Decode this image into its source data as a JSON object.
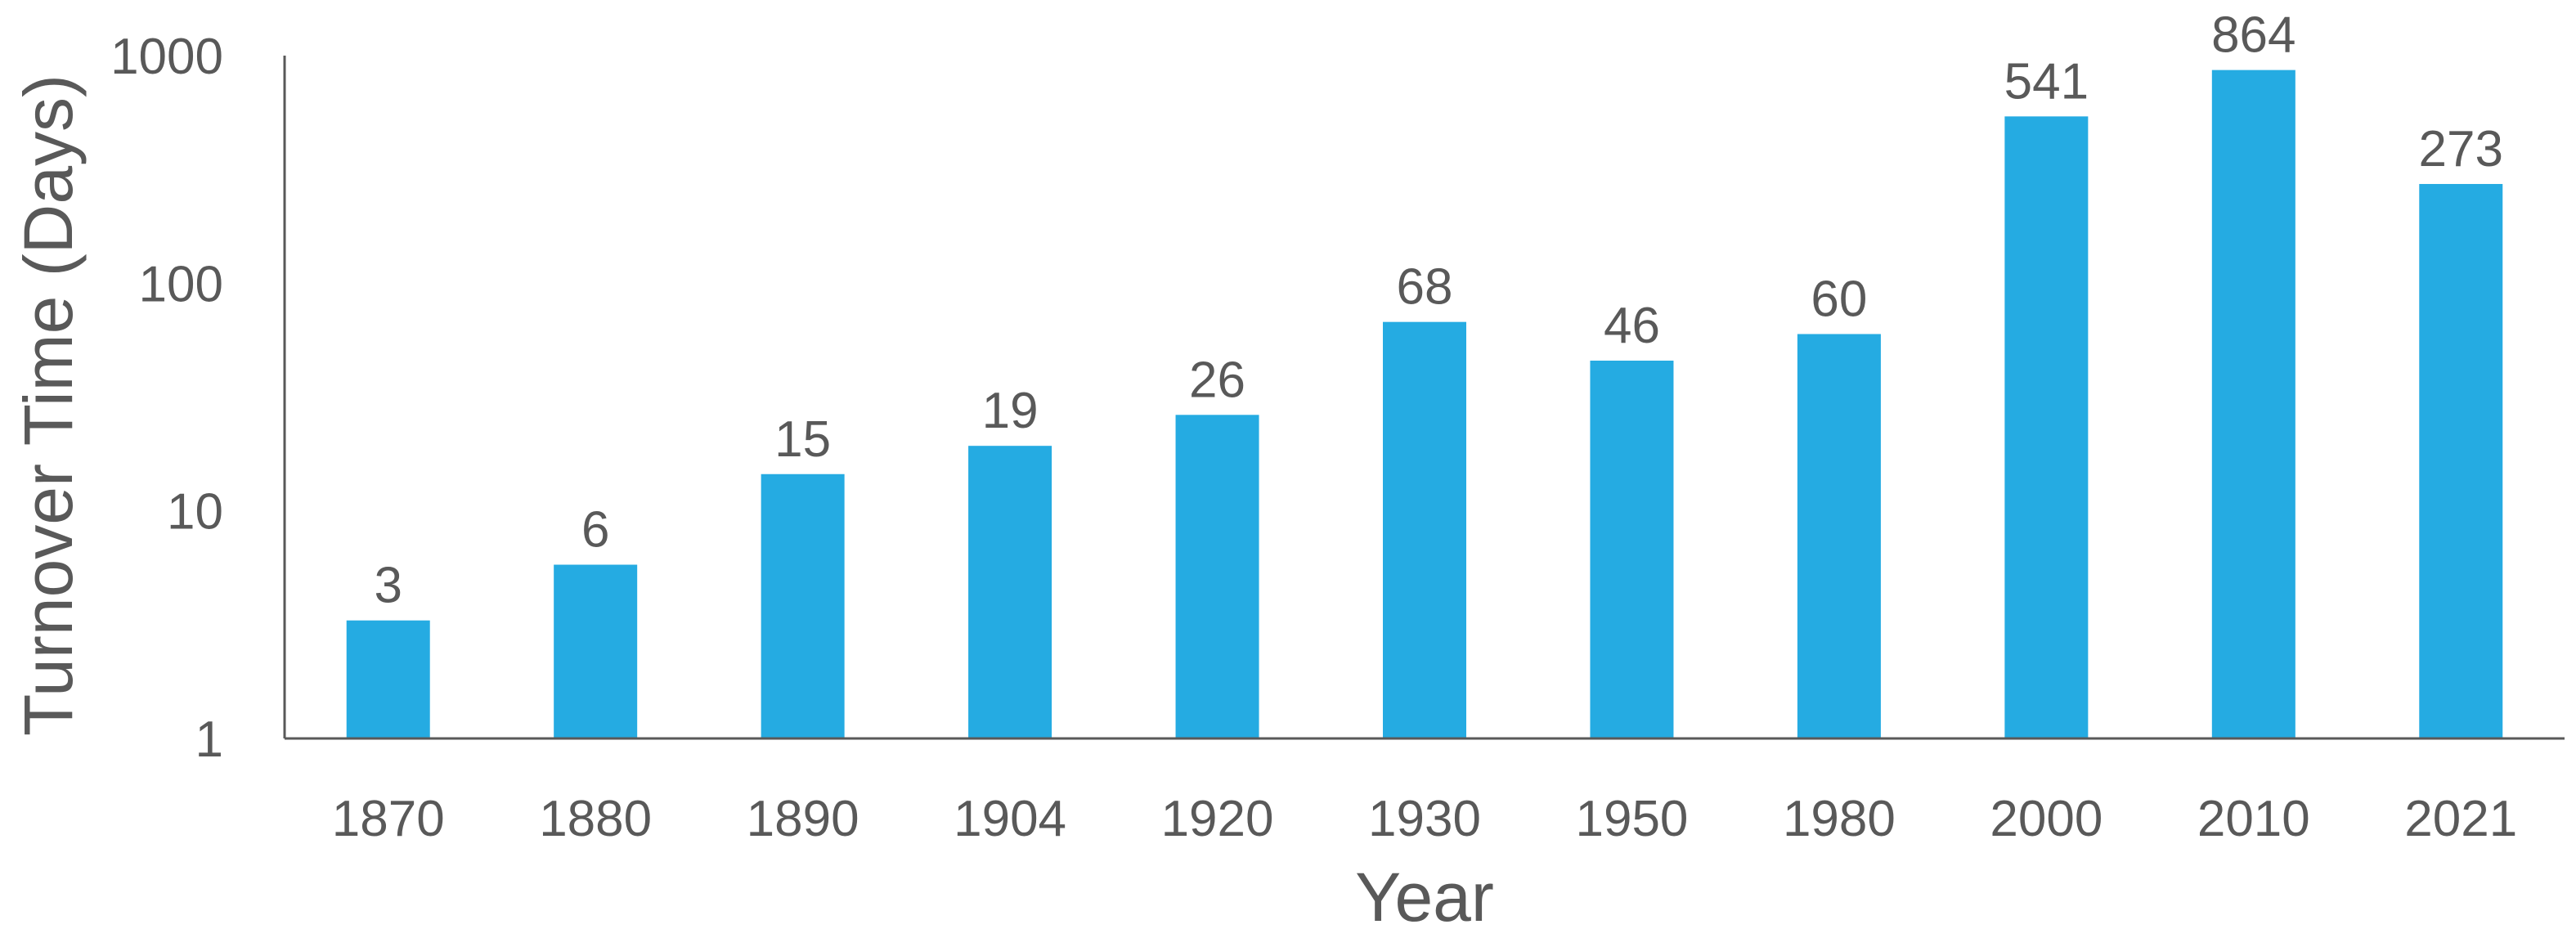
{
  "chart_data": {
    "type": "bar",
    "categories": [
      "1870",
      "1880",
      "1890",
      "1904",
      "1920",
      "1930",
      "1950",
      "1980",
      "2000",
      "2010",
      "2021"
    ],
    "values": [
      3.3,
      5.8,
      14.5,
      19.3,
      26.4,
      67.6,
      45.7,
      59.8,
      540.6,
      864.3,
      272.9
    ],
    "data_labels": [
      "3",
      "6",
      "15",
      "19",
      "26",
      "68",
      "46",
      "60",
      "541",
      "864",
      "273"
    ],
    "xlabel": "Year",
    "ylabel": "Turnover Time (Days)",
    "yscale": "log",
    "ylim": [
      1,
      1000
    ],
    "yticks": [
      1,
      10,
      100,
      1000
    ],
    "ytick_labels": [
      "1",
      "10",
      "100",
      "1000"
    ],
    "grid": false,
    "legend": "none",
    "bar_color": "#25ABE2",
    "text_color": "#595959"
  }
}
